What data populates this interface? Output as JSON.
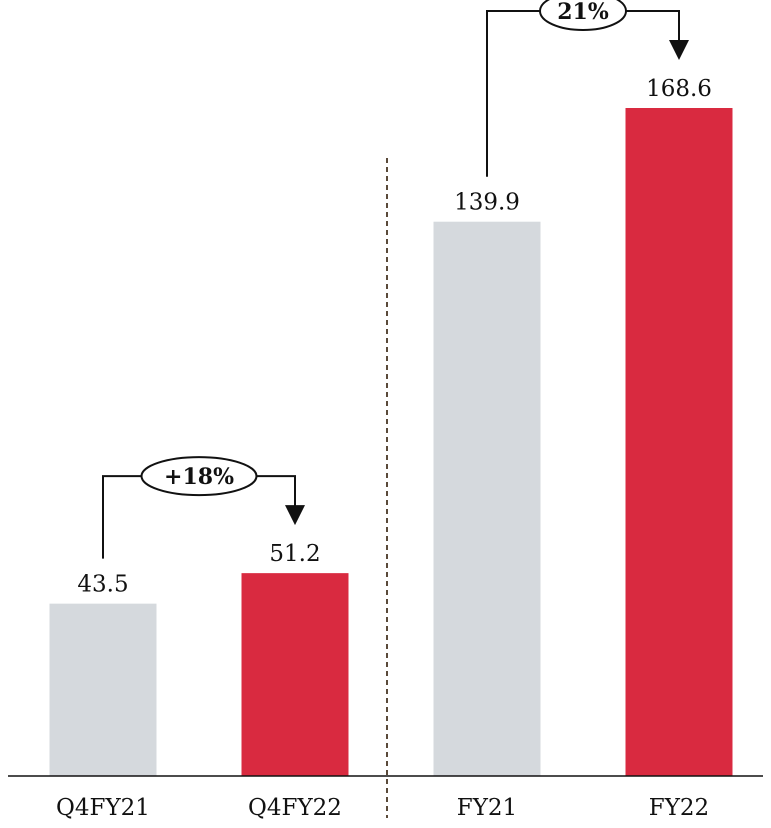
{
  "chart_data": {
    "type": "bar",
    "categories": [
      "Q4FY21",
      "Q4FY22",
      "FY21",
      "FY22"
    ],
    "values": [
      43.5,
      51.2,
      139.9,
      168.6
    ],
    "value_labels": [
      "43.5",
      "51.2",
      "139.9",
      "168.6"
    ],
    "colors": [
      "#d5d9dd",
      "#d92a40",
      "#d5d9dd",
      "#d92a40"
    ],
    "groups": [
      {
        "bars": [
          0,
          1
        ],
        "growth_label": "+18%"
      },
      {
        "bars": [
          2,
          3
        ],
        "growth_label": "21%"
      }
    ],
    "divider": "dashed",
    "divider_color": "#5a4a3a",
    "ylim": [
      0,
      168.6
    ],
    "grid": false,
    "legend": "none"
  }
}
